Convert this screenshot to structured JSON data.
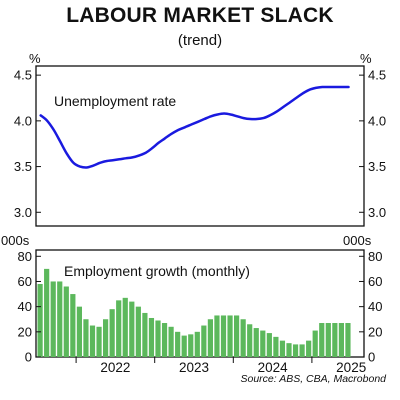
{
  "header": {
    "title": "LABOUR MARKET SLACK",
    "subtitle": "(trend)",
    "source": "Source: ABS, CBA, Macrobond"
  },
  "chart_data": [
    {
      "type": "line",
      "unit_left": "%",
      "unit_right": "%",
      "ylim": [
        2.85,
        4.6
      ],
      "yticks": [
        "3.0",
        "3.5",
        "4.0",
        "4.5"
      ],
      "grid": false,
      "series": [
        {
          "name": "Unemployment rate",
          "color": "#1a1adf",
          "x": [
            "2021-07",
            "2021-08",
            "2021-09",
            "2021-10",
            "2021-11",
            "2021-12",
            "2022-01",
            "2022-02",
            "2022-03",
            "2022-04",
            "2022-05",
            "2022-06",
            "2022-07",
            "2022-08",
            "2022-09",
            "2022-10",
            "2022-11",
            "2022-12",
            "2023-01",
            "2023-02",
            "2023-03",
            "2023-04",
            "2023-05",
            "2023-06",
            "2023-07",
            "2023-08",
            "2023-09",
            "2023-10",
            "2023-11",
            "2023-12",
            "2024-01",
            "2024-02",
            "2024-03",
            "2024-04",
            "2024-05",
            "2024-06",
            "2024-07",
            "2024-08",
            "2024-09",
            "2024-10",
            "2024-11",
            "2024-12",
            "2025-01",
            "2025-02",
            "2025-03",
            "2025-04",
            "2025-05",
            "2025-06"
          ],
          "values": [
            4.06,
            4.0,
            3.9,
            3.77,
            3.64,
            3.54,
            3.5,
            3.49,
            3.51,
            3.54,
            3.56,
            3.57,
            3.58,
            3.59,
            3.6,
            3.62,
            3.65,
            3.7,
            3.76,
            3.81,
            3.86,
            3.9,
            3.93,
            3.96,
            3.99,
            4.02,
            4.05,
            4.07,
            4.08,
            4.07,
            4.05,
            4.03,
            4.02,
            4.02,
            4.03,
            4.06,
            4.1,
            4.15,
            4.2,
            4.25,
            4.3,
            4.34,
            4.36,
            4.37,
            4.37,
            4.37,
            4.37,
            4.37
          ]
        }
      ]
    },
    {
      "type": "bar",
      "unit_left": "000s",
      "unit_right": "000s",
      "ylim": [
        0,
        85
      ],
      "yticks": [
        "0",
        "20",
        "40",
        "60",
        "80"
      ],
      "xticks": [
        "2022",
        "2023",
        "2024",
        "2025"
      ],
      "grid": false,
      "series": [
        {
          "name": "Employment growth (monthly)",
          "color": "#5cb85c",
          "x": [
            "2021-07",
            "2021-08",
            "2021-09",
            "2021-10",
            "2021-11",
            "2021-12",
            "2022-01",
            "2022-02",
            "2022-03",
            "2022-04",
            "2022-05",
            "2022-06",
            "2022-07",
            "2022-08",
            "2022-09",
            "2022-10",
            "2022-11",
            "2022-12",
            "2023-01",
            "2023-02",
            "2023-03",
            "2023-04",
            "2023-05",
            "2023-06",
            "2023-07",
            "2023-08",
            "2023-09",
            "2023-10",
            "2023-11",
            "2023-12",
            "2024-01",
            "2024-02",
            "2024-03",
            "2024-04",
            "2024-05",
            "2024-06",
            "2024-07",
            "2024-08",
            "2024-09",
            "2024-10",
            "2024-11",
            "2024-12",
            "2025-01",
            "2025-02",
            "2025-03",
            "2025-04",
            "2025-05",
            "2025-06"
          ],
          "values": [
            58,
            70,
            60,
            60,
            56,
            50,
            40,
            30,
            25,
            24,
            30,
            38,
            45,
            47,
            44,
            40,
            35,
            31,
            29,
            27,
            24,
            20,
            17,
            18,
            20,
            25,
            30,
            33,
            33,
            33,
            33,
            30,
            26,
            23,
            21,
            19,
            16,
            13,
            11,
            10,
            10,
            13,
            21,
            27,
            27,
            27,
            27,
            27
          ]
        }
      ]
    }
  ]
}
